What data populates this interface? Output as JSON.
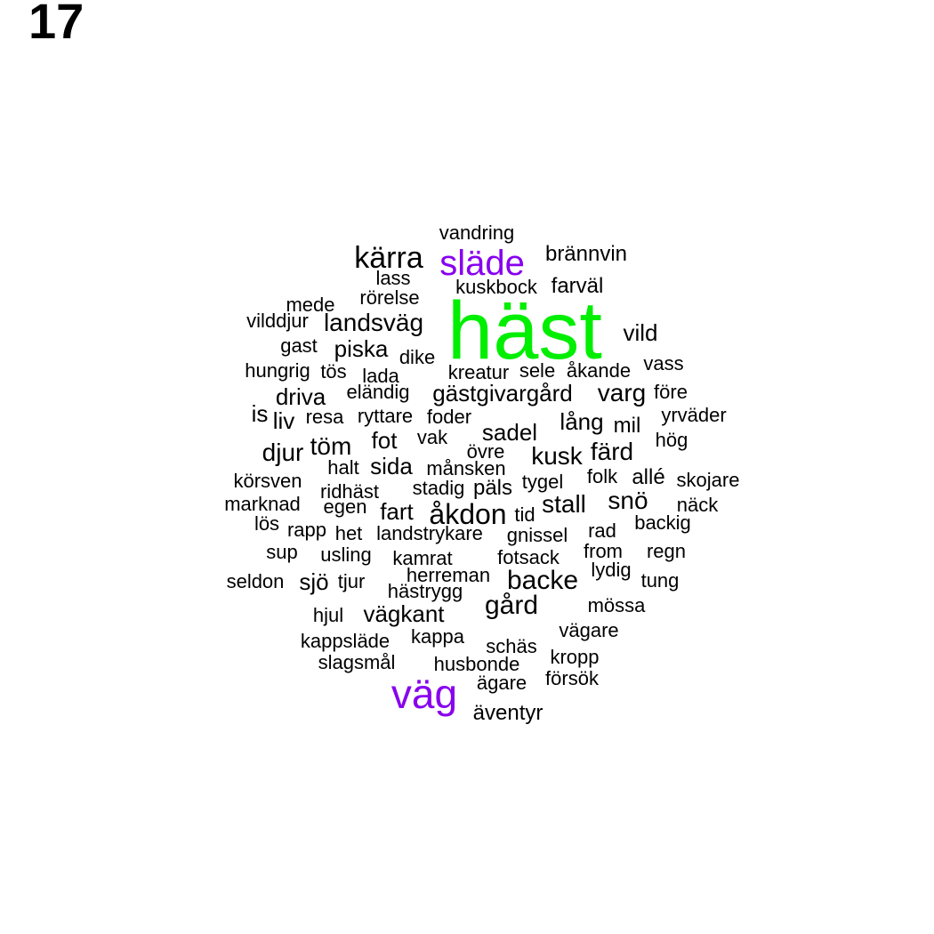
{
  "page_number": "17",
  "colors": {
    "default": "#000000",
    "highlight_green": "#00ee00",
    "highlight_purple": "#8800ee"
  },
  "words": [
    {
      "text": "häst",
      "color": "#00ee00"
    },
    {
      "text": "släde",
      "color": "#8800ee"
    },
    {
      "text": "väg",
      "color": "#8800ee"
    },
    {
      "text": "kärra"
    },
    {
      "text": "vandring"
    },
    {
      "text": "brännvin"
    },
    {
      "text": "lass"
    },
    {
      "text": "kuskbock"
    },
    {
      "text": "farväl"
    },
    {
      "text": "rörelse"
    },
    {
      "text": "mede"
    },
    {
      "text": "vilddjur"
    },
    {
      "text": "landsväg"
    },
    {
      "text": "vild"
    },
    {
      "text": "gast"
    },
    {
      "text": "piska"
    },
    {
      "text": "dike"
    },
    {
      "text": "hungrig"
    },
    {
      "text": "tös"
    },
    {
      "text": "lada"
    },
    {
      "text": "kreatur"
    },
    {
      "text": "sele"
    },
    {
      "text": "åkande"
    },
    {
      "text": "vass"
    },
    {
      "text": "driva"
    },
    {
      "text": "eländig"
    },
    {
      "text": "gästgivargård"
    },
    {
      "text": "varg"
    },
    {
      "text": "före"
    },
    {
      "text": "is"
    },
    {
      "text": "liv"
    },
    {
      "text": "resa"
    },
    {
      "text": "ryttare"
    },
    {
      "text": "foder"
    },
    {
      "text": "lång"
    },
    {
      "text": "mil"
    },
    {
      "text": "yrväder"
    },
    {
      "text": "sadel"
    },
    {
      "text": "hög"
    },
    {
      "text": "djur"
    },
    {
      "text": "töm"
    },
    {
      "text": "fot"
    },
    {
      "text": "vak"
    },
    {
      "text": "övre"
    },
    {
      "text": "kusk"
    },
    {
      "text": "färd"
    },
    {
      "text": "halt"
    },
    {
      "text": "sida"
    },
    {
      "text": "månsken"
    },
    {
      "text": "körsven"
    },
    {
      "text": "ridhäst"
    },
    {
      "text": "stadig"
    },
    {
      "text": "päls"
    },
    {
      "text": "tygel"
    },
    {
      "text": "folk"
    },
    {
      "text": "allé"
    },
    {
      "text": "skojare"
    },
    {
      "text": "marknad"
    },
    {
      "text": "egen"
    },
    {
      "text": "fart"
    },
    {
      "text": "åkdon"
    },
    {
      "text": "tid"
    },
    {
      "text": "stall"
    },
    {
      "text": "snö"
    },
    {
      "text": "näck"
    },
    {
      "text": "lös"
    },
    {
      "text": "rapp"
    },
    {
      "text": "het"
    },
    {
      "text": "landstrykare"
    },
    {
      "text": "gnissel"
    },
    {
      "text": "rad"
    },
    {
      "text": "backig"
    },
    {
      "text": "sup"
    },
    {
      "text": "usling"
    },
    {
      "text": "kamrat"
    },
    {
      "text": "fotsack"
    },
    {
      "text": "from"
    },
    {
      "text": "regn"
    },
    {
      "text": "herreman"
    },
    {
      "text": "lydig"
    },
    {
      "text": "seldon"
    },
    {
      "text": "sjö"
    },
    {
      "text": "tjur"
    },
    {
      "text": "hästrygg"
    },
    {
      "text": "backe"
    },
    {
      "text": "tung"
    },
    {
      "text": "gård"
    },
    {
      "text": "mössa"
    },
    {
      "text": "hjul"
    },
    {
      "text": "vägkant"
    },
    {
      "text": "kappa"
    },
    {
      "text": "vägare"
    },
    {
      "text": "kappsläde"
    },
    {
      "text": "schäs"
    },
    {
      "text": "kropp"
    },
    {
      "text": "slagsmål"
    },
    {
      "text": "husbonde"
    },
    {
      "text": "ägare"
    },
    {
      "text": "försök"
    },
    {
      "text": "äventyr"
    }
  ]
}
